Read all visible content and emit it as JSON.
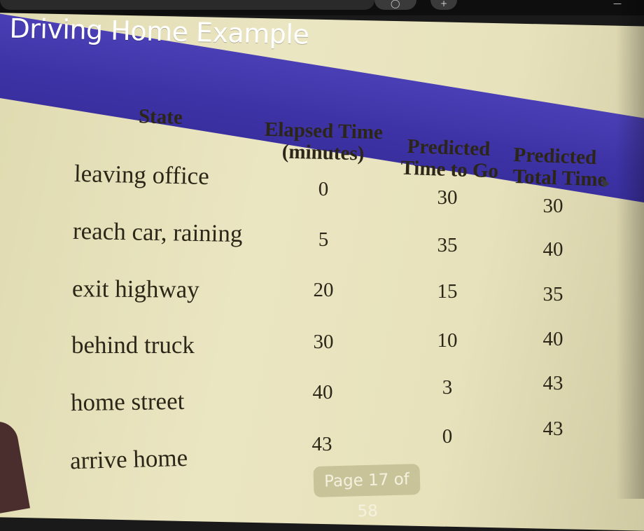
{
  "slide": {
    "title": "Driving Home Example",
    "headers": {
      "state": "State",
      "elapsed_line1": "Elapsed Time",
      "elapsed_line2": "(minutes)",
      "predicted_to_go_line1": "Predicted",
      "predicted_to_go_line2": "Time to Go",
      "predicted_total_line1": "Predicted",
      "predicted_total_line2": "Total Time"
    },
    "rows": [
      {
        "state": "leaving office",
        "elapsed": "0",
        "to_go": "30",
        "total": "30"
      },
      {
        "state": "reach car, raining",
        "elapsed": "5",
        "to_go": "35",
        "total": "40"
      },
      {
        "state": "exit highway",
        "elapsed": "20",
        "to_go": "15",
        "total": "35"
      },
      {
        "state": "behind truck",
        "elapsed": "30",
        "to_go": "10",
        "total": "40"
      },
      {
        "state": "home street",
        "elapsed": "40",
        "to_go": "3",
        "total": "43"
      },
      {
        "state": "arrive home",
        "elapsed": "43",
        "to_go": "0",
        "total": "43"
      }
    ],
    "page_indicator": "Page 17 of 58"
  },
  "colors": {
    "header_band": "#3e33a6",
    "slide_background": "#ebe6c2",
    "text": "#2c2618"
  },
  "icons": {
    "search": "search-icon",
    "add": "plus-icon",
    "menu": "menu-icon",
    "cursor": "mouse-pointer-icon"
  }
}
